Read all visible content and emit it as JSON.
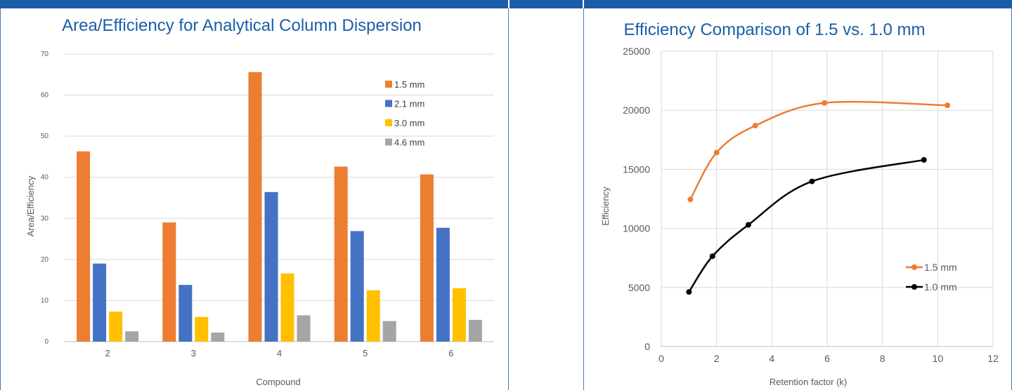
{
  "chart_data": [
    {
      "type": "bar",
      "title": "Area/Efficiency for Analytical Column Dispersion",
      "xlabel": "Compound",
      "ylabel": "Area/Efficiency",
      "categories": [
        "2",
        "3",
        "4",
        "5",
        "6"
      ],
      "ylim": [
        0,
        70
      ],
      "yticks": [
        0,
        10,
        20,
        30,
        40,
        50,
        60,
        70
      ],
      "grid": true,
      "legend_position": "top-right",
      "series": [
        {
          "name": "1.5 mm",
          "color": "#ed7d31",
          "values": [
            46.3,
            29.0,
            65.6,
            42.6,
            40.7
          ]
        },
        {
          "name": "2.1 mm",
          "color": "#4472c4",
          "values": [
            19.0,
            13.8,
            36.4,
            26.9,
            27.7
          ]
        },
        {
          "name": "3.0 mm",
          "color": "#ffc000",
          "values": [
            7.3,
            6.0,
            16.6,
            12.5,
            13.0
          ]
        },
        {
          "name": "4.6 mm",
          "color": "#a5a5a5",
          "values": [
            2.5,
            2.2,
            6.4,
            5.0,
            5.3
          ]
        }
      ]
    },
    {
      "type": "line",
      "title": "Efficiency Comparison of 1.5 vs. 1.0 mm",
      "xlabel": "Retention factor (k)",
      "ylabel": "Efficiency",
      "xlim": [
        0,
        12
      ],
      "xticks": [
        0,
        2,
        4,
        6,
        8,
        10,
        12
      ],
      "ylim": [
        0,
        25000
      ],
      "yticks": [
        0,
        5000,
        10000,
        15000,
        20000,
        25000
      ],
      "grid": true,
      "legend_position": "right",
      "series": [
        {
          "name": "1.5 mm",
          "color": "#ed7d31",
          "points": [
            [
              1.05,
              12450
            ],
            [
              2.0,
              16420
            ],
            [
              3.4,
              18700
            ],
            [
              5.9,
              20620
            ],
            [
              10.35,
              20420
            ]
          ]
        },
        {
          "name": "1.0 mm",
          "color": "#000000",
          "points": [
            [
              1.0,
              4620
            ],
            [
              1.85,
              7640
            ],
            [
              3.15,
              10300
            ],
            [
              5.45,
              13980
            ],
            [
              9.5,
              15800
            ]
          ]
        }
      ]
    }
  ]
}
